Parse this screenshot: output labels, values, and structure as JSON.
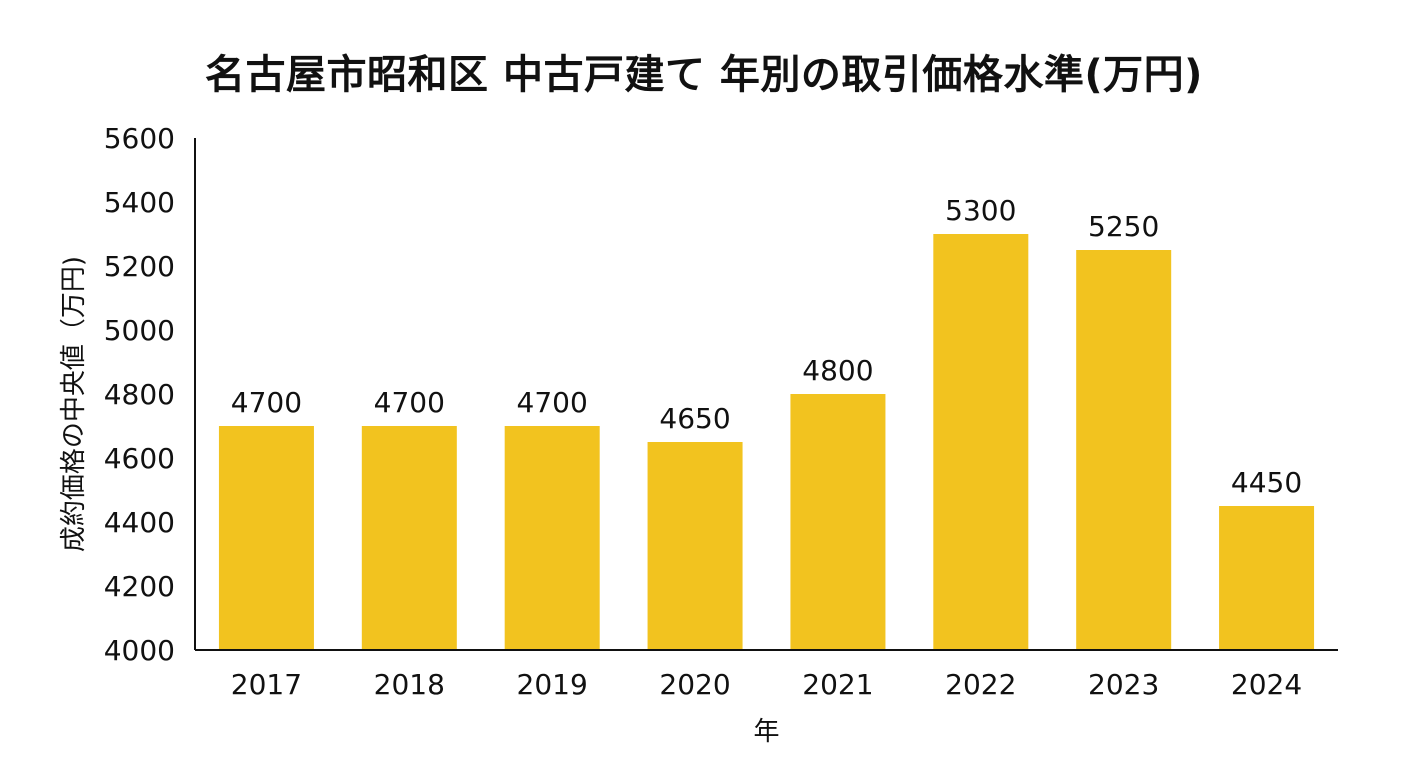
{
  "chart_data": {
    "type": "bar",
    "title": "名古屋市昭和区 中古戸建て 年別の取引価格水準(万円)",
    "xlabel": "年",
    "ylabel": "成約価格の中央値（万円)",
    "categories": [
      "2017",
      "2018",
      "2019",
      "2020",
      "2021",
      "2022",
      "2023",
      "2024"
    ],
    "values": [
      4700,
      4700,
      4700,
      4650,
      4800,
      5300,
      5250,
      4450
    ],
    "ylim": [
      4000,
      5600
    ],
    "yticks": [
      4000,
      4200,
      4400,
      4600,
      4800,
      5000,
      5200,
      5400,
      5600
    ],
    "grid": false,
    "data_labels": true,
    "bar_color": "#F2C31F",
    "axis_color": "#111111"
  }
}
